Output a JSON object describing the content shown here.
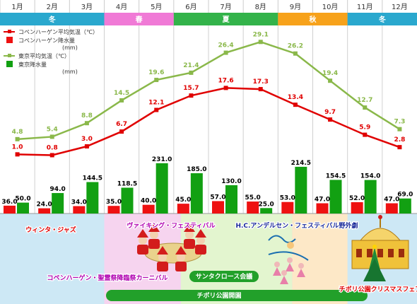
{
  "chart_data": {
    "type": "bar+line",
    "categories": [
      "1月",
      "2月",
      "3月",
      "4月",
      "5月",
      "6月",
      "7月",
      "8月",
      "9月",
      "10月",
      "11月",
      "12月"
    ],
    "seasons": [
      {
        "label": "冬",
        "from": 0,
        "to": 2,
        "color": "#2aa8ce"
      },
      {
        "label": "春",
        "from": 3,
        "to": 4,
        "color": "#f07ad6"
      },
      {
        "label": "夏",
        "from": 5,
        "to": 7,
        "color": "#33b34a"
      },
      {
        "label": "秋",
        "from": 8,
        "to": 9,
        "color": "#f7a21b"
      },
      {
        "label": "冬",
        "from": 10,
        "to": 11,
        "color": "#2aa8ce"
      }
    ],
    "series": [
      {
        "name": "コペンハーゲン平均気温（℃）",
        "kind": "line",
        "color": "#e00000",
        "values": [
          1.0,
          0.8,
          3.0,
          6.7,
          12.1,
          15.7,
          17.6,
          17.3,
          13.4,
          9.7,
          5.9,
          2.8
        ]
      },
      {
        "name": "コペンハーゲン降水量",
        "unit": "(mm)",
        "kind": "bar",
        "color": "#ee1111",
        "values": [
          36.0,
          24.0,
          34.0,
          35.0,
          40.0,
          45.0,
          57.0,
          55.0,
          53.0,
          47.0,
          52.0,
          47.0
        ]
      },
      {
        "name": "東京平均気温（℃）",
        "kind": "line",
        "color": "#8ab84a",
        "values": [
          4.8,
          5.4,
          8.8,
          14.5,
          19.6,
          21.4,
          26.4,
          29.1,
          26.2,
          19.4,
          12.7,
          7.3
        ]
      },
      {
        "name": "東京降水量",
        "unit": "(mm)",
        "kind": "bar",
        "color": "#12a012",
        "values": [
          50.0,
          94.0,
          144.5,
          118.5,
          231.0,
          185.0,
          130.0,
          25.0,
          214.5,
          154.5,
          154.0,
          69.0
        ]
      }
    ],
    "events": [
      {
        "label": "ウィンタ・ジャズ",
        "color": "#e00000"
      },
      {
        "label": "ヴァイキング・フェスティバル",
        "color": "#b000b0"
      },
      {
        "label": "H.C.アンデルセン・フェスティバル野外劇",
        "color": "#1a2a9a"
      },
      {
        "label": "コペンハーゲン・聖霊祭降臨祭カーニバル",
        "color": "#b000b0"
      },
      {
        "label": "サンタクロース会議",
        "color": "#ffffff"
      },
      {
        "label": "チボリ公園開園",
        "color": "#ffffff"
      },
      {
        "label": "チボリ公園クリスマスフェア",
        "color": "#e00000"
      }
    ]
  }
}
